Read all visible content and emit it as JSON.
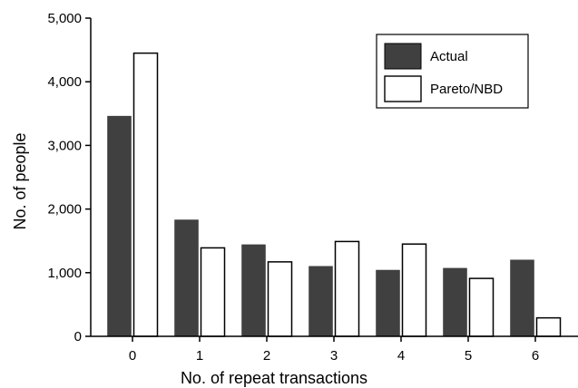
{
  "chart_data": {
    "type": "bar",
    "title": "",
    "xlabel": "No. of repeat transactions",
    "ylabel": "No. of people",
    "categories": [
      "0",
      "1",
      "2",
      "3",
      "4",
      "5",
      "6"
    ],
    "ylim": [
      0,
      5000
    ],
    "yticks": [
      0,
      1000,
      2000,
      3000,
      4000,
      5000
    ],
    "ytick_labels": [
      "0",
      "1,000",
      "2,000",
      "3,000",
      "4,000",
      "5,000"
    ],
    "grid": false,
    "legend_position": "top-right",
    "series": [
      {
        "name": "Actual",
        "values": [
          3460,
          1830,
          1440,
          1100,
          1040,
          1070,
          1200
        ],
        "color": "#404040"
      },
      {
        "name": "Pareto/NBD",
        "values": [
          4450,
          1390,
          1170,
          1490,
          1450,
          910,
          290
        ],
        "color": "#ffffff"
      }
    ]
  }
}
